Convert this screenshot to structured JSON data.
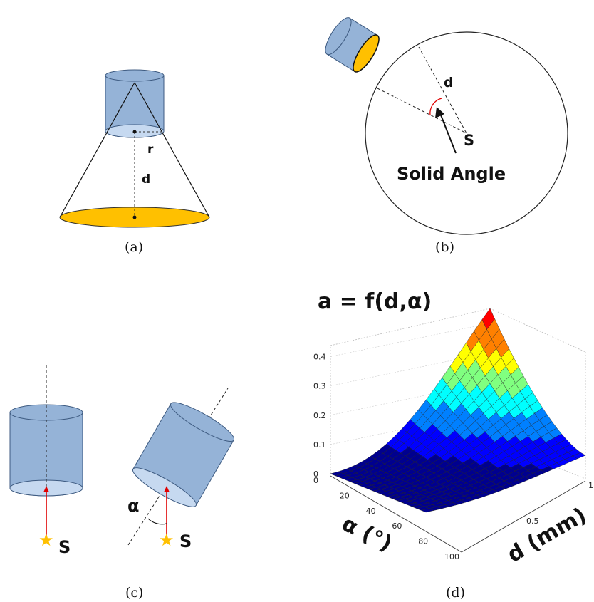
{
  "panel_a": {
    "caption": "(a)",
    "label_r": "r",
    "label_d": "d"
  },
  "panel_b": {
    "caption": "(b)",
    "label_d": "d",
    "label_s": "S",
    "label_solid_angle": "Solid Angle"
  },
  "panel_c": {
    "caption": "(c)",
    "label_s_left": "S",
    "label_s_right": "S",
    "label_alpha": "α"
  },
  "panel_d": {
    "caption": "(d)",
    "title": "a = f(d,α)",
    "xlabel": "α (°)",
    "ylabel": "d (mm)",
    "z_ticks": [
      "0",
      "0.1",
      "0.2",
      "0.3",
      "0.4"
    ],
    "alpha_ticks": [
      "0",
      "20",
      "40",
      "60",
      "80",
      "100"
    ],
    "d_ticks": [
      "0.5",
      "1"
    ]
  },
  "chart_data": {
    "type": "surface",
    "title": "a = f(d,α)",
    "xlabel": "α (°)",
    "ylabel": "d (mm)",
    "xlim": [
      0,
      100
    ],
    "ylim": [
      0,
      1
    ],
    "zlim": [
      0,
      0.45
    ],
    "x_ticks": [
      0,
      20,
      40,
      60,
      80,
      100
    ],
    "y_ticks": [
      0.5,
      1
    ],
    "z_ticks": [
      0,
      0.1,
      0.2,
      0.3,
      0.4
    ],
    "corner_values": {
      "alpha0_d0": 0.45,
      "alpha0_d1": 0.08,
      "alpha100_d0": 0.0,
      "alpha100_d1": 0.0
    },
    "colormap": [
      "#00008f",
      "#0000ff",
      "#0080ff",
      "#00ffff",
      "#80ff80",
      "#ffff00",
      "#ff8000",
      "#ff0000",
      "#800000"
    ]
  },
  "colors": {
    "cylinder": "#95b3d7",
    "cylinder_face": "#c6d9f0",
    "disk": "#ffc000",
    "arrow": "#e00000",
    "star": "#ffc000"
  }
}
